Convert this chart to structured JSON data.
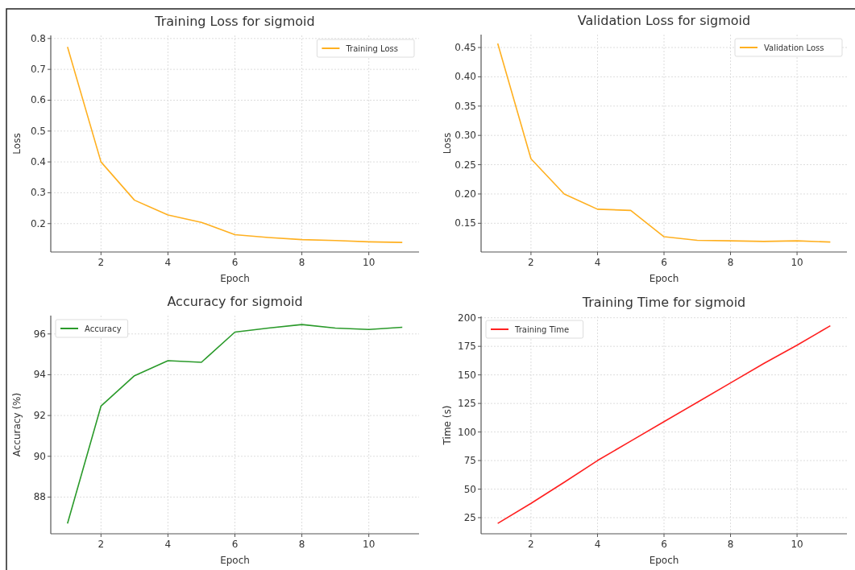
{
  "chart_data": [
    {
      "type": "line",
      "title": "Training Loss for sigmoid",
      "xlabel": "Epoch",
      "ylabel": "Loss",
      "x": [
        1,
        2,
        3,
        4,
        5,
        6,
        7,
        8,
        9,
        10,
        11
      ],
      "xlim": [
        0.5,
        11.5
      ],
      "xticks": [
        2,
        4,
        6,
        8,
        10
      ],
      "ylim": [
        0.108,
        0.81
      ],
      "yticks": [
        {
          "value": 0.2,
          "label": "0.2"
        },
        {
          "value": 0.3,
          "label": "0.3"
        },
        {
          "value": 0.4,
          "label": "0.4"
        },
        {
          "value": 0.5,
          "label": "0.5"
        },
        {
          "value": 0.6,
          "label": "0.6"
        },
        {
          "value": 0.7,
          "label": "0.7"
        },
        {
          "value": 0.8,
          "label": "0.8"
        }
      ],
      "grid": true,
      "legend": "top right",
      "series": [
        {
          "name": "Training Loss",
          "color": "#ffb020",
          "values": [
            0.773,
            0.4,
            0.276,
            0.228,
            0.204,
            0.164,
            0.155,
            0.148,
            0.145,
            0.141,
            0.139
          ]
        }
      ]
    },
    {
      "type": "line",
      "title": "Validation Loss for sigmoid",
      "xlabel": "Epoch",
      "ylabel": "Loss",
      "x": [
        1,
        2,
        3,
        4,
        5,
        6,
        7,
        8,
        9,
        10,
        11
      ],
      "xlim": [
        0.5,
        11.5
      ],
      "xticks": [
        2,
        4,
        6,
        8,
        10
      ],
      "ylim": [
        0.101,
        0.472
      ],
      "yticks": [
        {
          "value": 0.15,
          "label": "0.15"
        },
        {
          "value": 0.2,
          "label": "0.20"
        },
        {
          "value": 0.25,
          "label": "0.25"
        },
        {
          "value": 0.3,
          "label": "0.30"
        },
        {
          "value": 0.35,
          "label": "0.35"
        },
        {
          "value": 0.4,
          "label": "0.40"
        },
        {
          "value": 0.45,
          "label": "0.45"
        }
      ],
      "grid": true,
      "legend": "top right",
      "series": [
        {
          "name": "Validation Loss",
          "color": "#ffb020",
          "values": [
            0.457,
            0.26,
            0.2,
            0.174,
            0.172,
            0.127,
            0.121,
            0.12,
            0.119,
            0.12,
            0.118
          ]
        }
      ]
    },
    {
      "type": "line",
      "title": "Accuracy for sigmoid",
      "xlabel": "Epoch",
      "ylabel": "Accuracy (%)",
      "x": [
        1,
        2,
        3,
        4,
        5,
        6,
        7,
        8,
        9,
        10,
        11
      ],
      "xlim": [
        0.5,
        11.5
      ],
      "xticks": [
        2,
        4,
        6,
        8,
        10
      ],
      "ylim": [
        86.2,
        96.9
      ],
      "yticks": [
        88,
        90,
        92,
        94,
        96
      ],
      "grid": true,
      "legend": "top left",
      "series": [
        {
          "name": "Accuracy",
          "color": "#2a9a2a",
          "values": [
            86.7,
            92.46,
            93.95,
            94.69,
            94.61,
            96.09,
            96.29,
            96.46,
            96.29,
            96.22,
            96.33
          ]
        }
      ]
    },
    {
      "type": "line",
      "title": "Training Time for sigmoid",
      "xlabel": "Epoch",
      "ylabel": "Time (s)",
      "x": [
        1,
        2,
        3,
        4,
        5,
        6,
        7,
        8,
        9,
        10,
        11
      ],
      "xlim": [
        0.5,
        11.5
      ],
      "xticks": [
        2,
        4,
        6,
        8,
        10
      ],
      "ylim": [
        10.9,
        201.2
      ],
      "yticks": [
        25,
        50,
        75,
        100,
        125,
        150,
        175,
        200
      ],
      "grid": true,
      "legend": "top left",
      "series": [
        {
          "name": "Training Time",
          "color": "#ff2020",
          "values": [
            20,
            37.5,
            56,
            75,
            92,
            109,
            126,
            143,
            160,
            176,
            193
          ]
        }
      ]
    }
  ]
}
